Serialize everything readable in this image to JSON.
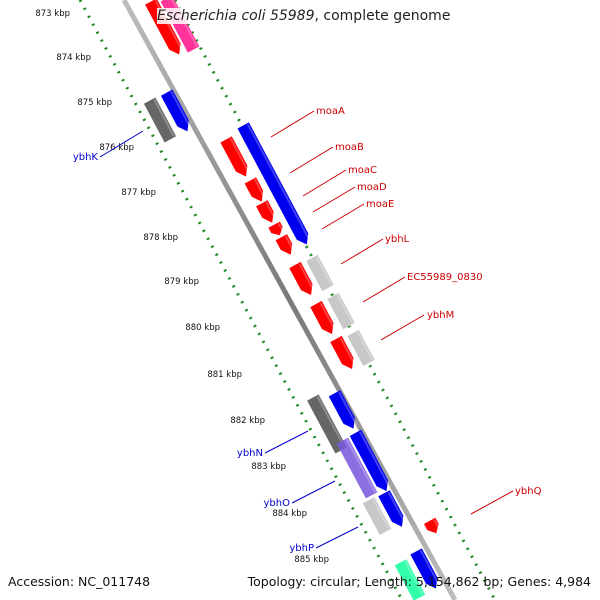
{
  "header": {
    "species": "Escherichia coli 55989",
    "suffix": ", complete genome"
  },
  "footer": {
    "accession": "Accession: NC_011748",
    "stats": "Topology: circular; Length: 5,154,862 bp; Genes: 4,984"
  },
  "colors": {
    "backbone": "#8a8a8a",
    "tick_dots": "#1f8a1f",
    "forward_label": "#cc0000",
    "reverse_label": "#0000cc",
    "red": "#ff0000",
    "blue": "#0000ee",
    "gray": "#c8c8c8",
    "dark_gray": "#666666",
    "pink": "#ff3399",
    "lavender": "#7755dd",
    "aqua": "#33ffaa"
  },
  "ticks": [
    "873 kbp",
    "874 kbp",
    "875 kbp",
    "876 kbp",
    "877 kbp",
    "878 kbp",
    "879 kbp",
    "880 kbp",
    "881 kbp",
    "882 kbp",
    "883 kbp",
    "884 kbp",
    "885 kbp"
  ],
  "forward_labels": [
    "moaA",
    "moaB",
    "moaC",
    "moaD",
    "moaE",
    "ybhL",
    "EC55989_0830",
    "ybhM",
    "ybhQ"
  ],
  "reverse_labels": [
    "ybhK",
    "ybhN",
    "ybhO",
    "ybhP"
  ]
}
